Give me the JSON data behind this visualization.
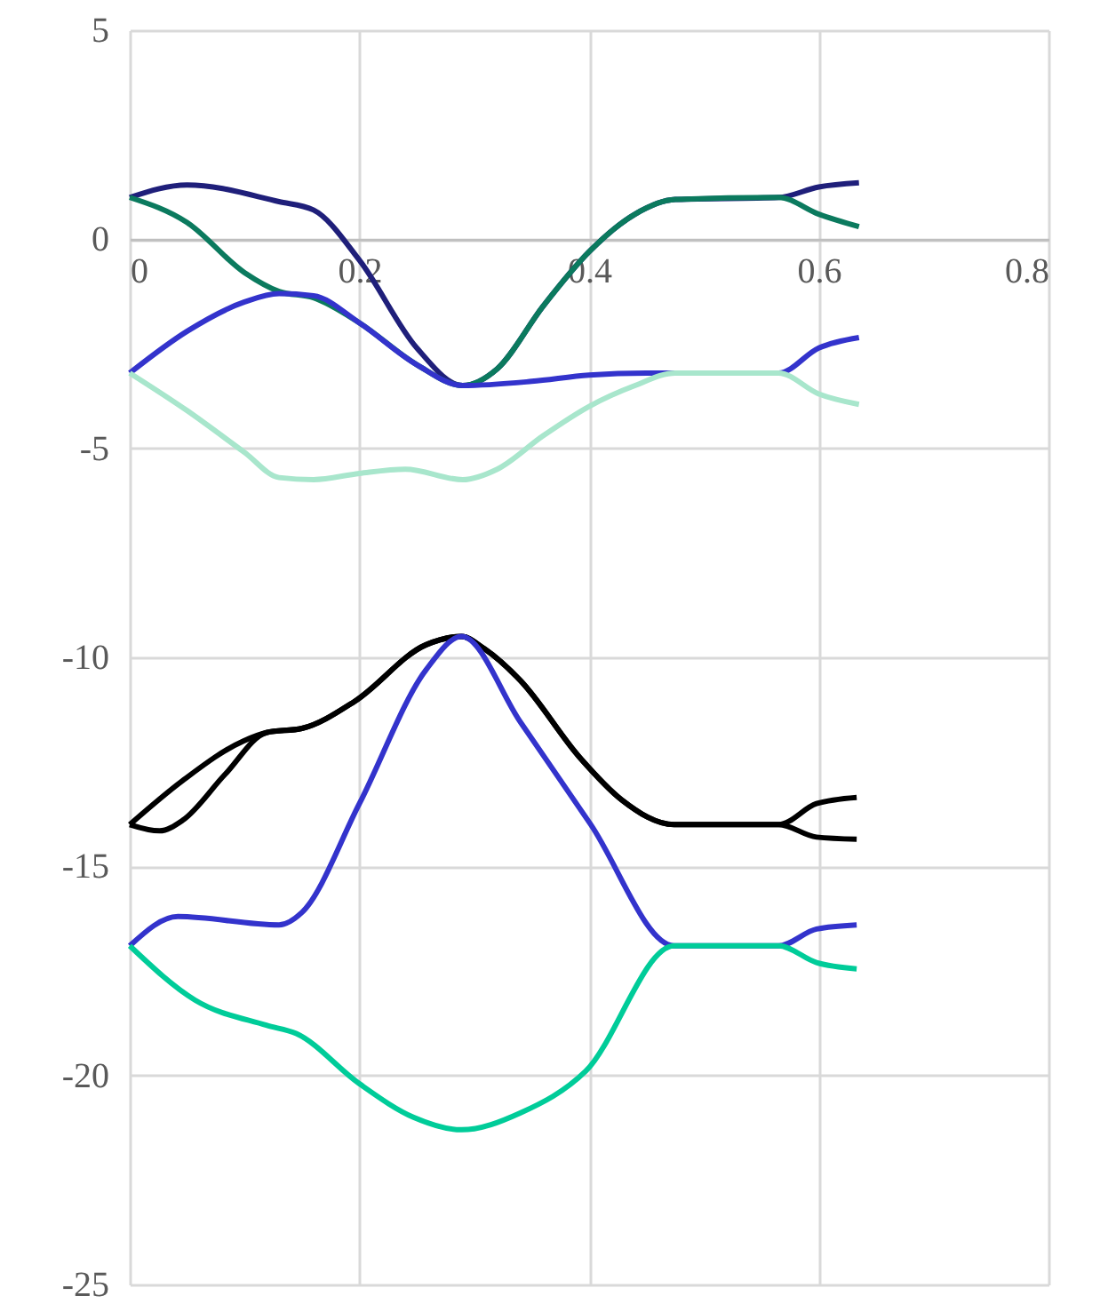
{
  "chart_data": {
    "type": "line",
    "xlim": [
      0,
      0.8
    ],
    "ylim": [
      -25,
      5
    ],
    "xticks": [
      0,
      0.2,
      0.4,
      0.6,
      0.8
    ],
    "yticks": [
      -25,
      -20,
      -15,
      -10,
      -5,
      0,
      5
    ],
    "grid": true,
    "legend": false,
    "marker": "none",
    "line_style": "solid",
    "series": [
      {
        "color": "#1f1f7a",
        "x": [
          0,
          0.05,
          0.13,
          0.16,
          0.2,
          0.25,
          0.29,
          0.32,
          0.36,
          0.4,
          0.44,
          0.475,
          0.565,
          0.6,
          0.635
        ],
        "values": [
          1.0,
          1.3,
          0.9,
          0.7,
          -0.5,
          -2.6,
          -3.5,
          -3.1,
          -1.6,
          -0.3,
          0.6,
          0.95,
          1.0,
          1.25,
          1.35
        ]
      },
      {
        "color": "#0b7a5e",
        "x": [
          0,
          0.05,
          0.1,
          0.13,
          0.16,
          0.2,
          0.25,
          0.29,
          0.32,
          0.36,
          0.4,
          0.44,
          0.475,
          0.565,
          0.6,
          0.635
        ],
        "values": [
          1.0,
          0.4,
          -0.8,
          -1.25,
          -1.4,
          -2.0,
          -3.0,
          -3.5,
          -3.1,
          -1.6,
          -0.3,
          0.6,
          0.95,
          1.0,
          0.6,
          0.3
        ]
      },
      {
        "color": "#3333cc",
        "x": [
          0,
          0.05,
          0.1,
          0.13,
          0.16,
          0.2,
          0.25,
          0.29,
          0.35,
          0.4,
          0.45,
          0.565,
          0.6,
          0.635
        ],
        "values": [
          -3.2,
          -2.2,
          -1.5,
          -1.3,
          -1.35,
          -2.0,
          -3.0,
          -3.5,
          -3.4,
          -3.25,
          -3.2,
          -3.2,
          -2.6,
          -2.35
        ]
      },
      {
        "color": "#a8e6cc",
        "x": [
          0,
          0.05,
          0.1,
          0.13,
          0.16,
          0.2,
          0.24,
          0.29,
          0.32,
          0.36,
          0.4,
          0.44,
          0.475,
          0.565,
          0.6,
          0.635
        ],
        "values": [
          -3.2,
          -4.1,
          -5.1,
          -5.7,
          -5.75,
          -5.6,
          -5.5,
          -5.75,
          -5.5,
          -4.7,
          -4.0,
          -3.5,
          -3.2,
          -3.2,
          -3.7,
          -3.95
        ]
      },
      {
        "color": "#000000",
        "x": [
          0,
          0.046,
          0.099,
          0.119,
          0.15,
          0.196,
          0.258,
          0.289,
          0.309,
          0.34,
          0.392,
          0.428,
          0.474,
          0.565,
          0.598,
          0.633
        ],
        "values": [
          -14.0,
          -12.95,
          -12.0,
          -11.8,
          -11.7,
          -11.05,
          -9.7,
          -9.5,
          -9.8,
          -10.55,
          -12.4,
          -13.4,
          -14.0,
          -14.0,
          -13.5,
          -13.35
        ]
      },
      {
        "color": "#000000",
        "x": [
          0,
          0.026,
          0.046,
          0.083,
          0.119,
          0.15,
          0.196,
          0.258,
          0.289,
          0.309,
          0.34,
          0.392,
          0.428,
          0.474,
          0.565,
          0.598,
          0.633
        ],
        "values": [
          -14.0,
          -14.15,
          -13.9,
          -12.8,
          -11.8,
          -11.7,
          -11.05,
          -9.7,
          -9.5,
          -9.8,
          -10.55,
          -12.4,
          -13.4,
          -14.0,
          -14.0,
          -14.3,
          -14.35
        ]
      },
      {
        "color": "#3333cc",
        "x": [
          0,
          0.042,
          0.13,
          0.15,
          0.2,
          0.258,
          0.289,
          0.34,
          0.401,
          0.474,
          0.565,
          0.598,
          0.633
        ],
        "values": [
          -16.9,
          -16.2,
          -16.4,
          -16.1,
          -13.5,
          -10.3,
          -9.5,
          -11.54,
          -13.98,
          -16.9,
          -16.9,
          -16.5,
          -16.4
        ]
      },
      {
        "color": "#00cc99",
        "x": [
          0,
          0.057,
          0.119,
          0.145,
          0.2,
          0.247,
          0.289,
          0.34,
          0.397,
          0.474,
          0.565,
          0.598,
          0.633
        ],
        "values": [
          -16.9,
          -18.2,
          -18.8,
          -19.0,
          -20.2,
          -21.0,
          -21.3,
          -20.9,
          -19.9,
          -16.9,
          -16.9,
          -17.3,
          -17.45
        ]
      }
    ]
  }
}
